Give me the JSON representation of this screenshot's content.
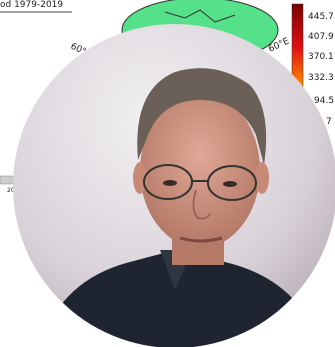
{
  "background": {
    "title": "od 1979-2019",
    "map_labels": [
      "60°",
      "60°E"
    ],
    "colorbar_labels": [
      "445.7",
      "407.9",
      "370.1",
      "332.3",
      "94.5",
      "7"
    ],
    "axis_label": "20"
  }
}
